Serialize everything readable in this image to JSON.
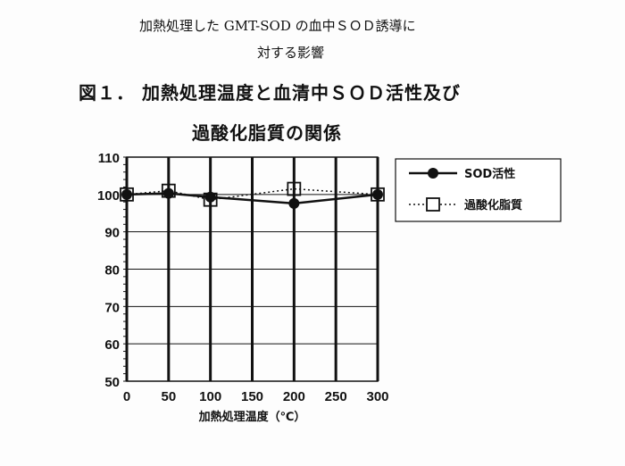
{
  "document": {
    "subtitle_line1": "加熱処理した GMT-SOD の血中ＳＯＤ誘導に",
    "subtitle_line2": "対する影響"
  },
  "chart_data": {
    "type": "line",
    "title_line1": "図１． 加熱処理温度と血清中ＳＯＤ活性及び",
    "title_line2": "過酸化脂質の関係",
    "xlabel": "加熱処理温度（℃）",
    "ylabel": "",
    "xlim": [
      0,
      300
    ],
    "ylim": [
      50,
      110
    ],
    "xticks": [
      0,
      50,
      100,
      150,
      200,
      250,
      300
    ],
    "yticks": [
      50,
      60,
      70,
      80,
      90,
      100,
      110
    ],
    "grid": true,
    "legend_position": "right",
    "series": [
      {
        "name": "SOD活性",
        "marker": "filled-circle",
        "line": "solid",
        "x": [
          0,
          50,
          100,
          200,
          300
        ],
        "y": [
          100,
          100.3,
          99.3,
          97.6,
          100
        ]
      },
      {
        "name": "過酸化脂質",
        "marker": "open-square",
        "line": "dotted",
        "x": [
          0,
          50,
          100,
          200,
          300
        ],
        "y": [
          100,
          101,
          98.6,
          101.5,
          100
        ]
      }
    ],
    "colors": {
      "ink": "#111111"
    }
  }
}
